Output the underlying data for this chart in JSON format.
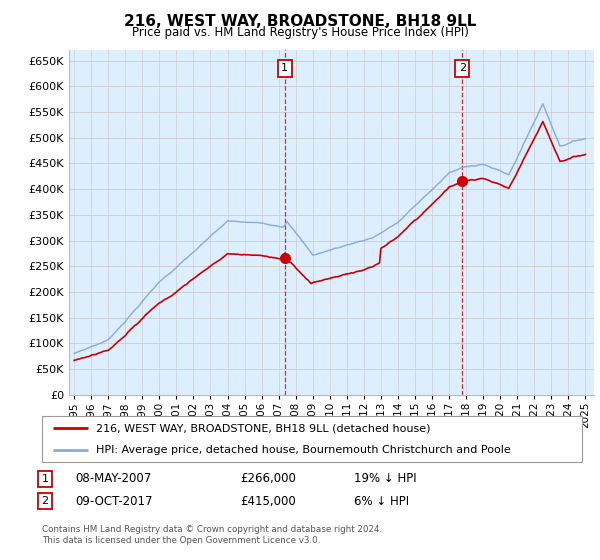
{
  "title": "216, WEST WAY, BROADSTONE, BH18 9LL",
  "subtitle": "Price paid vs. HM Land Registry's House Price Index (HPI)",
  "legend_line1": "216, WEST WAY, BROADSTONE, BH18 9LL (detached house)",
  "legend_line2": "HPI: Average price, detached house, Bournemouth Christchurch and Poole",
  "sale1_date": "08-MAY-2007",
  "sale1_price": "£266,000",
  "sale1_hpi": "19% ↓ HPI",
  "sale1_year": 2007.35,
  "sale1_value": 266000,
  "sale2_date": "09-OCT-2017",
  "sale2_price": "£415,000",
  "sale2_hpi": "6% ↓ HPI",
  "sale2_year": 2017.77,
  "sale2_value": 415000,
  "footer": "Contains HM Land Registry data © Crown copyright and database right 2024.\nThis data is licensed under the Open Government Licence v3.0.",
  "line_color_price": "#cc0000",
  "line_color_hpi": "#88aadd",
  "bg_color": "#ddeeff",
  "plot_bg": "#ffffff",
  "grid_color": "#cccccc",
  "annotation_box_color": "#cc0000",
  "ylim": [
    0,
    670000
  ],
  "yticks": [
    0,
    50000,
    100000,
    150000,
    200000,
    250000,
    300000,
    350000,
    400000,
    450000,
    500000,
    550000,
    600000,
    650000
  ]
}
